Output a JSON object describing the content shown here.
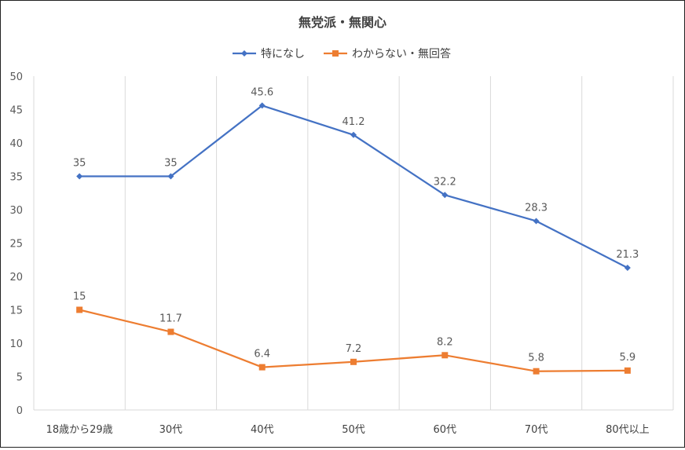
{
  "chart_data": {
    "type": "line",
    "title": "無党派・無関心",
    "xlabel": "",
    "ylabel": "",
    "categories": [
      "18歳から29歳",
      "30代",
      "40代",
      "50代",
      "60代",
      "70代",
      "80代以上"
    ],
    "ylim": [
      0,
      50
    ],
    "yticks": [
      0,
      5,
      10,
      15,
      20,
      25,
      30,
      35,
      40,
      45,
      50
    ],
    "grid": "vertical",
    "legend_position": "top",
    "series": [
      {
        "name": "特になし",
        "color": "#4472C4",
        "marker": "diamond",
        "values": [
          35,
          35,
          45.6,
          41.2,
          32.2,
          28.3,
          21.3
        ],
        "labels": [
          "35",
          "35",
          "45.6",
          "41.2",
          "32.2",
          "28.3",
          "21.3"
        ]
      },
      {
        "name": "わからない・無回答",
        "color": "#ED7D31",
        "marker": "square",
        "values": [
          15,
          11.7,
          6.4,
          7.2,
          8.2,
          5.8,
          5.9
        ],
        "labels": [
          "15",
          "11.7",
          "6.4",
          "7.2",
          "8.2",
          "5.8",
          "5.9"
        ]
      }
    ]
  }
}
